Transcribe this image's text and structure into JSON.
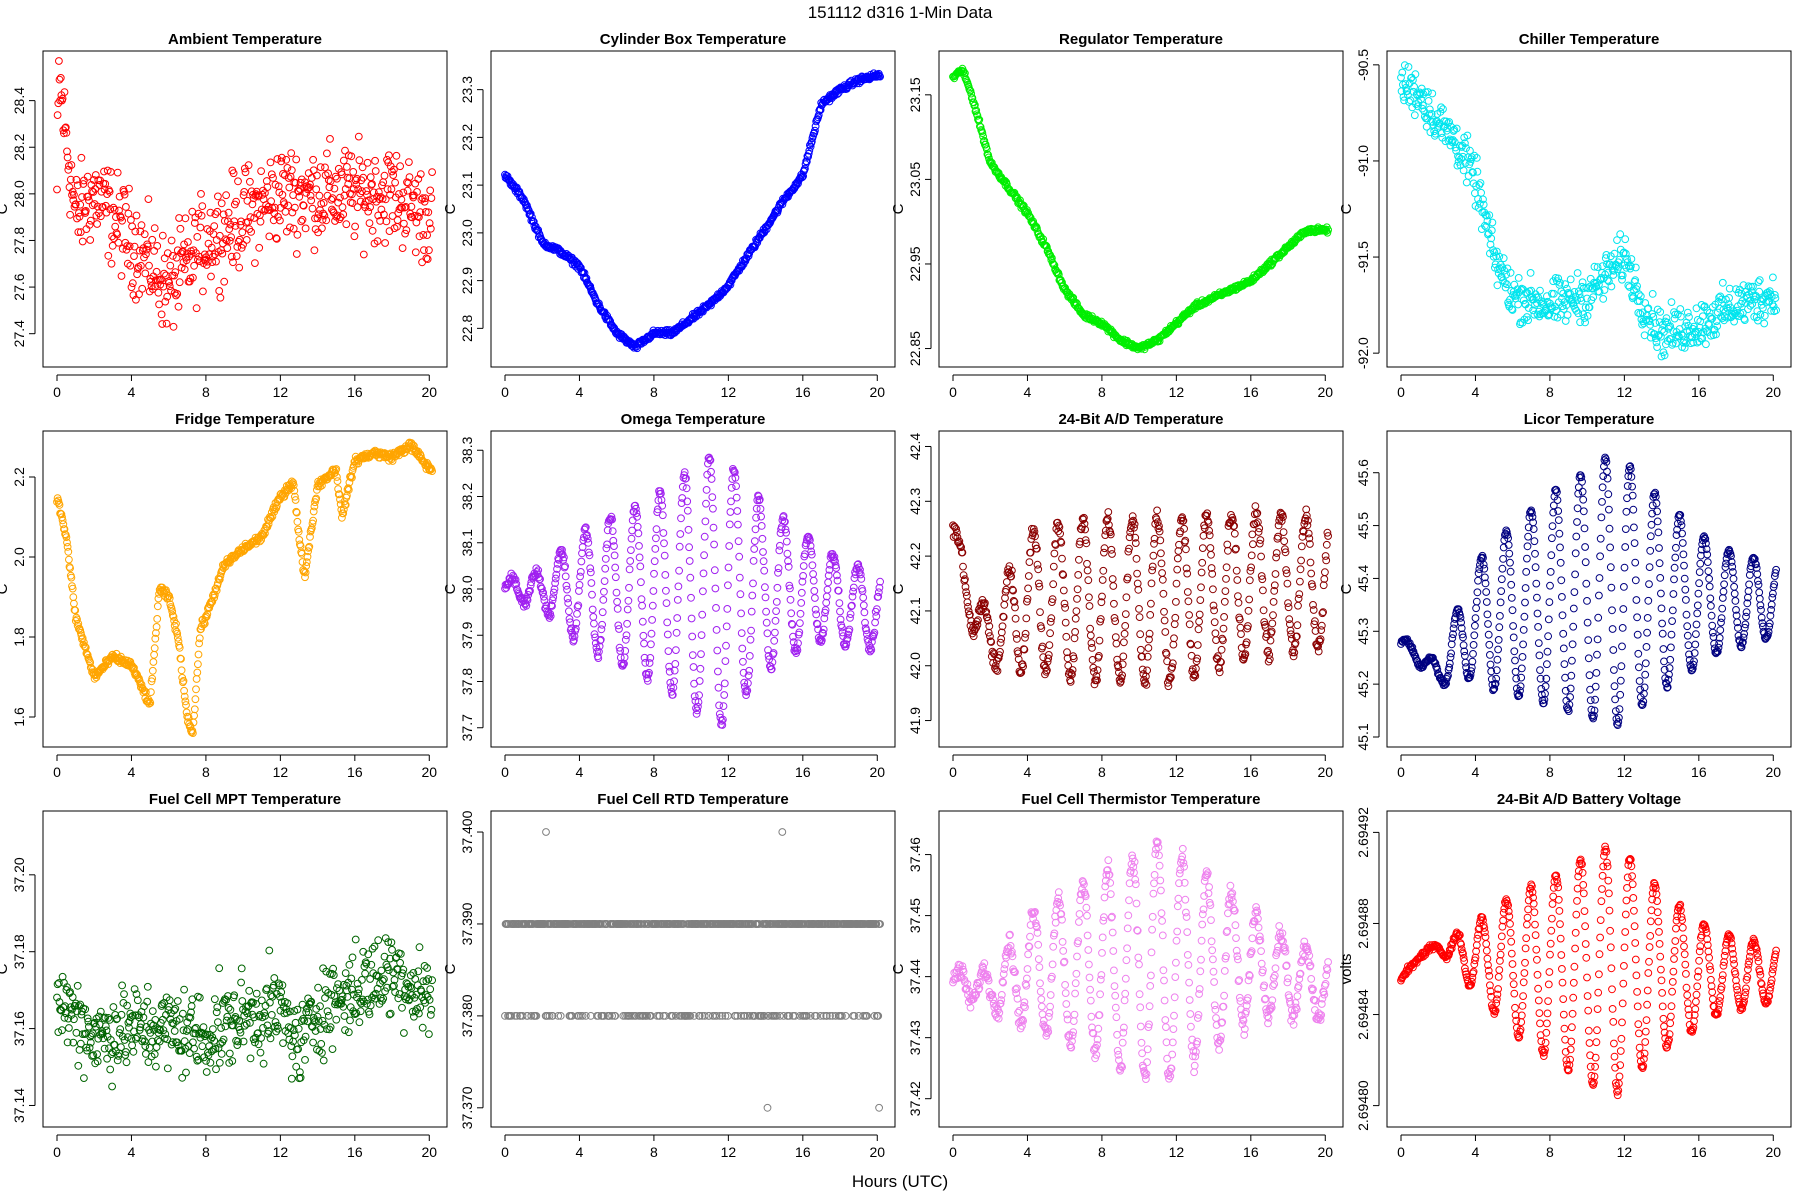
{
  "figure": {
    "title": "151112   d316   1-Min Data",
    "xlabel": "Hours (UTC)"
  },
  "chart_data": [
    {
      "type": "scatter",
      "title": "Ambient Temperature",
      "ylabel": "C",
      "color": "#ff0000",
      "xlim": [
        0,
        20.2
      ],
      "ylim": [
        27.3,
        28.57
      ],
      "xticks": [
        0,
        4,
        8,
        12,
        16,
        20
      ],
      "xtick_labels": [
        "0",
        "4",
        "8",
        "12",
        "16",
        "20"
      ],
      "yticks": [
        27.4,
        27.6,
        27.8,
        28.0,
        28.2,
        28.4
      ],
      "ytick_labels": [
        "27.4",
        "27.6",
        "27.8",
        "28.0",
        "28.2",
        "28.4"
      ],
      "trend": [
        [
          0,
          28.0
        ],
        [
          0.1,
          28.5
        ],
        [
          1,
          27.9
        ],
        [
          2,
          28.0
        ],
        [
          3,
          27.9
        ],
        [
          4,
          27.8
        ],
        [
          5,
          27.7
        ],
        [
          6,
          27.6
        ],
        [
          7,
          27.7
        ],
        [
          8,
          27.8
        ],
        [
          10,
          27.9
        ],
        [
          12,
          28.0
        ],
        [
          14,
          28.0
        ],
        [
          16,
          28.0
        ],
        [
          18,
          28.0
        ],
        [
          20,
          27.9
        ]
      ],
      "spread": 0.2
    },
    {
      "type": "scatter",
      "title": "Cylinder Box Temperature",
      "ylabel": "C",
      "color": "#0000ff",
      "xlim": [
        0,
        20.2
      ],
      "ylim": [
        22.74,
        23.36
      ],
      "xticks": [
        0,
        4,
        8,
        12,
        16,
        20
      ],
      "xtick_labels": [
        "0",
        "4",
        "8",
        "12",
        "16",
        "20"
      ],
      "yticks": [
        22.8,
        22.9,
        23.0,
        23.1,
        23.2,
        23.3
      ],
      "ytick_labels": [
        "22.8",
        "22.9",
        "23.0",
        "23.1",
        "23.2",
        "23.3"
      ],
      "trend": [
        [
          0,
          23.12
        ],
        [
          1,
          23.07
        ],
        [
          2,
          22.98
        ],
        [
          3,
          22.96
        ],
        [
          4,
          22.93
        ],
        [
          5,
          22.85
        ],
        [
          6,
          22.79
        ],
        [
          7,
          22.76
        ],
        [
          8,
          22.79
        ],
        [
          9,
          22.79
        ],
        [
          10,
          22.82
        ],
        [
          11,
          22.85
        ],
        [
          12,
          22.89
        ],
        [
          13,
          22.95
        ],
        [
          14,
          23.01
        ],
        [
          15,
          23.07
        ],
        [
          16,
          23.12
        ],
        [
          17,
          23.27
        ],
        [
          18,
          23.3
        ],
        [
          19,
          23.32
        ],
        [
          20,
          23.33
        ]
      ],
      "spread": 0.006
    },
    {
      "type": "scatter",
      "title": "Regulator Temperature",
      "ylabel": "C",
      "color": "#00ee00",
      "xlim": [
        0,
        20.2
      ],
      "ylim": [
        22.84,
        23.19
      ],
      "xticks": [
        0,
        4,
        8,
        12,
        16,
        20
      ],
      "xtick_labels": [
        "0",
        "4",
        "8",
        "12",
        "16",
        "20"
      ],
      "yticks": [
        22.85,
        22.95,
        23.05,
        23.15
      ],
      "ytick_labels": [
        "22.85",
        "22.95",
        "23.05",
        "23.15"
      ],
      "trend": [
        [
          0,
          23.17
        ],
        [
          0.5,
          23.18
        ],
        [
          1,
          23.15
        ],
        [
          2,
          23.07
        ],
        [
          3,
          23.04
        ],
        [
          4,
          23.01
        ],
        [
          5,
          22.97
        ],
        [
          6,
          22.92
        ],
        [
          7,
          22.89
        ],
        [
          8,
          22.88
        ],
        [
          9,
          22.86
        ],
        [
          10,
          22.85
        ],
        [
          11,
          22.86
        ],
        [
          12,
          22.88
        ],
        [
          13,
          22.9
        ],
        [
          14,
          22.91
        ],
        [
          15,
          22.92
        ],
        [
          16,
          22.93
        ],
        [
          17,
          22.95
        ],
        [
          18,
          22.97
        ],
        [
          19,
          22.99
        ],
        [
          20,
          22.99
        ]
      ],
      "spread": 0.003
    },
    {
      "type": "scatter",
      "title": "Chiller Temperature",
      "ylabel": "C",
      "color": "#00e5ee",
      "xlim": [
        0,
        20.2
      ],
      "ylim": [
        -92.02,
        -90.48
      ],
      "xticks": [
        0,
        4,
        8,
        12,
        16,
        20
      ],
      "xtick_labels": [
        "0",
        "4",
        "8",
        "12",
        "16",
        "20"
      ],
      "yticks": [
        -92.0,
        -91.5,
        -91.0,
        -90.5
      ],
      "ytick_labels": [
        "-92.0",
        "-91.5",
        "-91.0",
        "-90.5"
      ],
      "trend": [
        [
          0,
          -90.6
        ],
        [
          1,
          -90.65
        ],
        [
          2,
          -90.8
        ],
        [
          3,
          -90.9
        ],
        [
          4,
          -91.1
        ],
        [
          5,
          -91.5
        ],
        [
          6,
          -91.7
        ],
        [
          8,
          -91.75
        ],
        [
          10,
          -91.7
        ],
        [
          12,
          -91.5
        ],
        [
          13,
          -91.75
        ],
        [
          14,
          -91.9
        ],
        [
          16,
          -91.85
        ],
        [
          18,
          -91.75
        ],
        [
          20,
          -91.7
        ]
      ],
      "spread": 0.12
    },
    {
      "type": "scatter",
      "title": "Fridge Temperature",
      "ylabel": "C",
      "color": "#ffa500",
      "xlim": [
        0,
        20.2
      ],
      "ylim": [
        1.55,
        2.29
      ],
      "xticks": [
        0,
        4,
        8,
        12,
        16,
        20
      ],
      "xtick_labels": [
        "0",
        "4",
        "8",
        "12",
        "16",
        "20"
      ],
      "yticks": [
        1.6,
        1.8,
        2.0,
        2.2
      ],
      "ytick_labels": [
        "1.6",
        "1.8",
        "2.0",
        "2.2"
      ],
      "trend": [
        [
          0,
          2.15
        ],
        [
          0.5,
          2.05
        ],
        [
          1,
          1.85
        ],
        [
          2,
          1.7
        ],
        [
          3,
          1.75
        ],
        [
          4,
          1.73
        ],
        [
          5,
          1.63
        ],
        [
          5.5,
          1.92
        ],
        [
          6,
          1.9
        ],
        [
          6.5,
          1.8
        ],
        [
          7,
          1.6
        ],
        [
          7.3,
          1.56
        ],
        [
          7.7,
          1.82
        ],
        [
          8,
          1.85
        ],
        [
          9,
          1.98
        ],
        [
          10,
          2.02
        ],
        [
          11,
          2.05
        ],
        [
          12,
          2.15
        ],
        [
          12.7,
          2.19
        ],
        [
          13,
          2.05
        ],
        [
          13.3,
          1.95
        ],
        [
          14,
          2.18
        ],
        [
          15,
          2.22
        ],
        [
          15.3,
          2.1
        ],
        [
          16,
          2.24
        ],
        [
          17,
          2.26
        ],
        [
          18,
          2.25
        ],
        [
          19,
          2.28
        ],
        [
          20,
          2.22
        ]
      ],
      "spread": 0.01
    },
    {
      "type": "scatter",
      "title": "Omega Temperature",
      "ylabel": "C",
      "color": "#a020f0",
      "xlim": [
        0,
        20.2
      ],
      "ylim": [
        37.68,
        38.32
      ],
      "xticks": [
        0,
        4,
        8,
        12,
        16,
        20
      ],
      "xtick_labels": [
        "0",
        "4",
        "8",
        "12",
        "16",
        "20"
      ],
      "yticks": [
        37.7,
        37.8,
        37.9,
        38.0,
        38.1,
        38.2,
        38.3
      ],
      "ytick_labels": [
        "37.7",
        "37.8",
        "37.9",
        "38.0",
        "38.1",
        "38.2",
        "38.3"
      ],
      "trend": [
        [
          0,
          38.0
        ],
        [
          2,
          38.0
        ],
        [
          4,
          38.0
        ],
        [
          8,
          38.0
        ],
        [
          12,
          38.0
        ],
        [
          16,
          38.0
        ],
        [
          20,
          37.95
        ]
      ],
      "osc": {
        "period": 1.33,
        "amp": [
          [
            0,
            0.02
          ],
          [
            2,
            0.04
          ],
          [
            4,
            0.12
          ],
          [
            8,
            0.2
          ],
          [
            11.5,
            0.3
          ],
          [
            14,
            0.18
          ],
          [
            17,
            0.1
          ],
          [
            20,
            0.08
          ]
        ]
      },
      "spread": 0.01
    },
    {
      "type": "scatter",
      "title": "24-Bit A/D Temperature",
      "ylabel": "C",
      "color": "#8b0000",
      "xlim": [
        0,
        20.2
      ],
      "ylim": [
        41.87,
        42.41
      ],
      "xticks": [
        0,
        4,
        8,
        12,
        16,
        20
      ],
      "xtick_labels": [
        "0",
        "4",
        "8",
        "12",
        "16",
        "20"
      ],
      "yticks": [
        41.9,
        42.0,
        42.1,
        42.2,
        42.3,
        42.4
      ],
      "ytick_labels": [
        "41.9",
        "42.0",
        "42.1",
        "42.2",
        "42.3",
        "42.4"
      ],
      "trend": [
        [
          0,
          42.25
        ],
        [
          1,
          42.1
        ],
        [
          2,
          42.05
        ],
        [
          4,
          42.12
        ],
        [
          8,
          42.12
        ],
        [
          12,
          42.12
        ],
        [
          16,
          42.15
        ],
        [
          20,
          42.15
        ]
      ],
      "osc": {
        "period": 1.33,
        "amp": [
          [
            0,
            0.02
          ],
          [
            2,
            0.05
          ],
          [
            4,
            0.13
          ],
          [
            8,
            0.15
          ],
          [
            12,
            0.15
          ],
          [
            16,
            0.13
          ],
          [
            20,
            0.12
          ]
        ]
      },
      "spread": 0.015
    },
    {
      "type": "scatter",
      "title": "Licor Temperature",
      "ylabel": "C",
      "color": "#000080",
      "xlim": [
        0,
        20.2
      ],
      "ylim": [
        45.1,
        45.66
      ],
      "xticks": [
        0,
        4,
        8,
        12,
        16,
        20
      ],
      "xtick_labels": [
        "0",
        "4",
        "8",
        "12",
        "16",
        "20"
      ],
      "yticks": [
        45.1,
        45.2,
        45.3,
        45.4,
        45.5,
        45.6
      ],
      "ytick_labels": [
        "45.1",
        "45.2",
        "45.3",
        "45.4",
        "45.5",
        "45.6"
      ],
      "trend": [
        [
          0,
          45.28
        ],
        [
          2,
          45.22
        ],
        [
          4,
          45.32
        ],
        [
          8,
          45.36
        ],
        [
          11.5,
          45.38
        ],
        [
          16,
          45.36
        ],
        [
          20,
          45.36
        ]
      ],
      "osc": {
        "period": 1.33,
        "amp": [
          [
            0,
            0.01
          ],
          [
            2,
            0.02
          ],
          [
            3,
            0.07
          ],
          [
            5,
            0.14
          ],
          [
            8,
            0.2
          ],
          [
            11.5,
            0.26
          ],
          [
            14,
            0.18
          ],
          [
            17,
            0.1
          ],
          [
            20,
            0.07
          ]
        ]
      },
      "spread": 0.004
    },
    {
      "type": "scatter",
      "title": "Fuel Cell MPT Temperature",
      "ylabel": "C",
      "color": "#006400",
      "xlim": [
        0,
        20.2
      ],
      "ylim": [
        37.137,
        37.214
      ],
      "xticks": [
        0,
        4,
        8,
        12,
        16,
        20
      ],
      "xtick_labels": [
        "0",
        "4",
        "8",
        "12",
        "16",
        "20"
      ],
      "yticks": [
        37.14,
        37.16,
        37.18,
        37.2
      ],
      "ytick_labels": [
        "37.14",
        "37.16",
        "37.18",
        "37.20"
      ],
      "trend": [
        [
          0,
          37.168
        ],
        [
          2,
          37.158
        ],
        [
          4,
          37.16
        ],
        [
          6,
          37.16
        ],
        [
          8,
          37.158
        ],
        [
          10,
          37.163
        ],
        [
          12,
          37.165
        ],
        [
          13,
          37.155
        ],
        [
          14,
          37.165
        ],
        [
          16,
          37.17
        ],
        [
          18,
          37.175
        ],
        [
          20,
          37.168
        ]
      ],
      "spread": 0.011
    },
    {
      "type": "scatter",
      "title": "Fuel Cell RTD Temperature",
      "ylabel": "C",
      "color": "#808080",
      "xlim": [
        0,
        20.2
      ],
      "ylim": [
        37.369,
        37.4012
      ],
      "xticks": [
        0,
        4,
        8,
        12,
        16,
        20
      ],
      "xtick_labels": [
        "0",
        "4",
        "8",
        "12",
        "16",
        "20"
      ],
      "yticks": [
        37.37,
        37.38,
        37.39,
        37.4
      ],
      "ytick_labels": [
        "37.370",
        "37.380",
        "37.390",
        "37.400"
      ],
      "levels": [
        37.38,
        37.39
      ],
      "level_probability": 0.72,
      "outliers": [
        [
          2.2,
          37.4
        ],
        [
          14.9,
          37.4
        ],
        [
          14.1,
          37.37
        ],
        [
          20.1,
          37.37
        ]
      ]
    },
    {
      "type": "scatter",
      "title": "Fuel Cell Thermistor Temperature",
      "ylabel": "C",
      "color": "#ee82ee",
      "xlim": [
        0,
        20.2
      ],
      "ylim": [
        37.417,
        37.4655
      ],
      "xticks": [
        0,
        4,
        8,
        12,
        16,
        20
      ],
      "xtick_labels": [
        "0",
        "4",
        "8",
        "12",
        "16",
        "20"
      ],
      "yticks": [
        37.42,
        37.43,
        37.44,
        37.45,
        37.46
      ],
      "ytick_labels": [
        "37.42",
        "37.43",
        "37.44",
        "37.45",
        "37.46"
      ],
      "trend": [
        [
          0,
          37.439
        ],
        [
          2,
          37.438
        ],
        [
          4,
          37.441
        ],
        [
          8,
          37.442
        ],
        [
          12,
          37.442
        ],
        [
          16,
          37.442
        ],
        [
          20,
          37.438
        ]
      ],
      "osc": {
        "period": 1.33,
        "amp": [
          [
            0,
            0.002
          ],
          [
            2,
            0.003
          ],
          [
            4,
            0.009
          ],
          [
            8,
            0.015
          ],
          [
            11,
            0.02
          ],
          [
            14,
            0.014
          ],
          [
            17,
            0.007
          ],
          [
            20,
            0.005
          ]
        ]
      },
      "spread": 0.0015
    },
    {
      "type": "scatter",
      "title": "24-Bit A/D Battery Voltage",
      "ylabel": "volts",
      "color": "#ff0000",
      "xlim": [
        0,
        20.2
      ],
      "ylim": [
        2.694795,
        2.694925
      ],
      "xticks": [
        0,
        4,
        8,
        12,
        16,
        20
      ],
      "xtick_labels": [
        "0",
        "4",
        "8",
        "12",
        "16",
        "20"
      ],
      "yticks": [
        2.6948,
        2.69484,
        2.69488,
        2.69492
      ],
      "ytick_labels": [
        "2.69480",
        "2.69484",
        "2.69488",
        "2.69492"
      ],
      "trend": [
        [
          0,
          2.694855
        ],
        [
          1,
          2.694866
        ],
        [
          2,
          2.69487
        ],
        [
          4,
          2.694865
        ],
        [
          8,
          2.69486
        ],
        [
          12,
          2.69486
        ],
        [
          16,
          2.694858
        ],
        [
          20,
          2.694858
        ]
      ],
      "osc": {
        "period": 1.33,
        "amp": [
          [
            0,
            5e-07
          ],
          [
            2,
            1.5e-06
          ],
          [
            3,
            8e-06
          ],
          [
            6,
            3e-05
          ],
          [
            10,
            5e-05
          ],
          [
            11.5,
            5.5e-05
          ],
          [
            14,
            3.5e-05
          ],
          [
            17,
            1.8e-05
          ],
          [
            20,
            1.2e-05
          ]
        ]
      },
      "spread": 1.2e-06
    }
  ]
}
